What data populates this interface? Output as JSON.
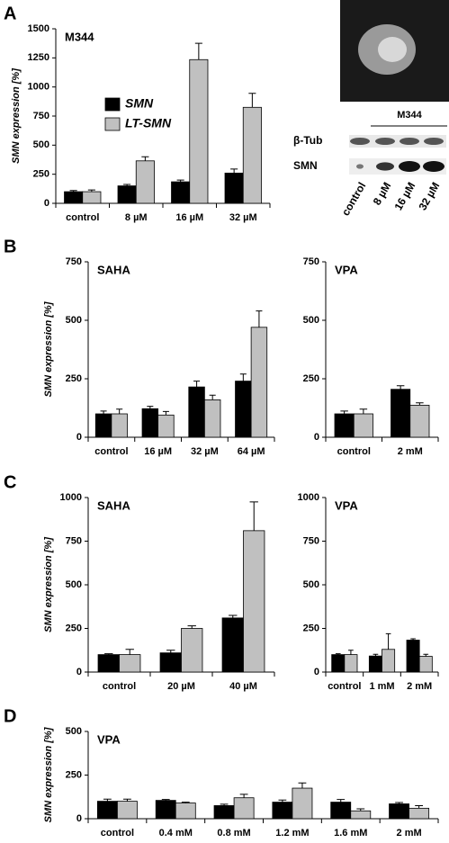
{
  "chart_data": [
    {
      "type": "bar",
      "panel_label": "A",
      "title": "M344",
      "y_label": "SMN expression [%]",
      "legend": true,
      "categories": [
        "control",
        "8 µM",
        "16 µM",
        "32 µM"
      ],
      "ylim": [
        0,
        1500
      ],
      "yticks": [
        0,
        250,
        500,
        750,
        1000,
        1250,
        1500
      ],
      "series": [
        {
          "name": "SMN",
          "color": "#000000",
          "values": [
            100,
            150,
            185,
            260
          ],
          "errors": [
            10,
            12,
            15,
            35
          ]
        },
        {
          "name": "LT-SMN",
          "color": "#c0c0c0",
          "values": [
            100,
            365,
            1235,
            825
          ],
          "errors": [
            15,
            35,
            140,
            120
          ]
        }
      ]
    },
    {
      "type": "bar",
      "panel_label": "B",
      "title": "SAHA",
      "y_label": "SMN expression [%]",
      "categories": [
        "control",
        "16 µM",
        "32 µM",
        "64 µM"
      ],
      "ylim": [
        0,
        750
      ],
      "yticks": [
        0,
        250,
        500,
        750
      ],
      "series": [
        {
          "name": "SMN",
          "color": "#000000",
          "values": [
            100,
            122,
            215,
            240
          ],
          "errors": [
            12,
            10,
            25,
            30
          ]
        },
        {
          "name": "LT-SMN",
          "color": "#c0c0c0",
          "values": [
            100,
            95,
            160,
            470
          ],
          "errors": [
            20,
            15,
            20,
            70
          ]
        }
      ]
    },
    {
      "type": "bar",
      "title": "VPA",
      "categories": [
        "control",
        "2 mM"
      ],
      "ylim": [
        0,
        750
      ],
      "yticks": [
        0,
        250,
        500,
        750
      ],
      "series": [
        {
          "name": "SMN",
          "color": "#000000",
          "values": [
            100,
            205
          ],
          "errors": [
            12,
            15
          ]
        },
        {
          "name": "LT-SMN",
          "color": "#c0c0c0",
          "values": [
            100,
            137
          ],
          "errors": [
            20,
            10
          ]
        }
      ]
    },
    {
      "type": "bar",
      "panel_label": "C",
      "title": "SAHA",
      "y_label": "SMN expression [%]",
      "categories": [
        "control",
        "20 µM",
        "40 µM"
      ],
      "ylim": [
        0,
        1000
      ],
      "yticks": [
        0,
        250,
        500,
        750,
        1000
      ],
      "series": [
        {
          "name": "SMN",
          "color": "#000000",
          "values": [
            100,
            110,
            310
          ],
          "errors": [
            5,
            15,
            15
          ]
        },
        {
          "name": "LT-SMN",
          "color": "#c0c0c0",
          "values": [
            100,
            250,
            810
          ],
          "errors": [
            30,
            15,
            165
          ]
        }
      ]
    },
    {
      "type": "bar",
      "title": "VPA",
      "categories": [
        "control",
        "1 mM",
        "2 mM"
      ],
      "ylim": [
        0,
        1000
      ],
      "yticks": [
        0,
        250,
        500,
        750,
        1000
      ],
      "series": [
        {
          "name": "SMN",
          "color": "#000000",
          "values": [
            100,
            92,
            183
          ],
          "errors": [
            5,
            10,
            8
          ]
        },
        {
          "name": "LT-SMN",
          "color": "#c0c0c0",
          "values": [
            100,
            130,
            90
          ],
          "errors": [
            25,
            90,
            12
          ]
        }
      ]
    },
    {
      "type": "bar",
      "panel_label": "D",
      "title": "VPA",
      "y_label": "SMN expression [%]",
      "categories": [
        "control",
        "0.4 mM",
        "0.8 mM",
        "1.2 mM",
        "1.6 mM",
        "2 mM"
      ],
      "ylim": [
        0,
        500
      ],
      "yticks": [
        0,
        250,
        500
      ],
      "series": [
        {
          "name": "SMN",
          "color": "#000000",
          "values": [
            100,
            105,
            75,
            95,
            95,
            85
          ],
          "errors": [
            12,
            5,
            8,
            12,
            15,
            8
          ]
        },
        {
          "name": "LT-SMN",
          "color": "#c0c0c0",
          "values": [
            100,
            90,
            120,
            175,
            45,
            60
          ],
          "errors": [
            12,
            5,
            20,
            30,
            12,
            15
          ]
        }
      ]
    }
  ],
  "blot": {
    "treatment": "M344",
    "rows": [
      "β-Tub",
      "SMN"
    ],
    "lanes": [
      "control",
      "8 µM",
      "16 µM",
      "32 µM"
    ]
  }
}
